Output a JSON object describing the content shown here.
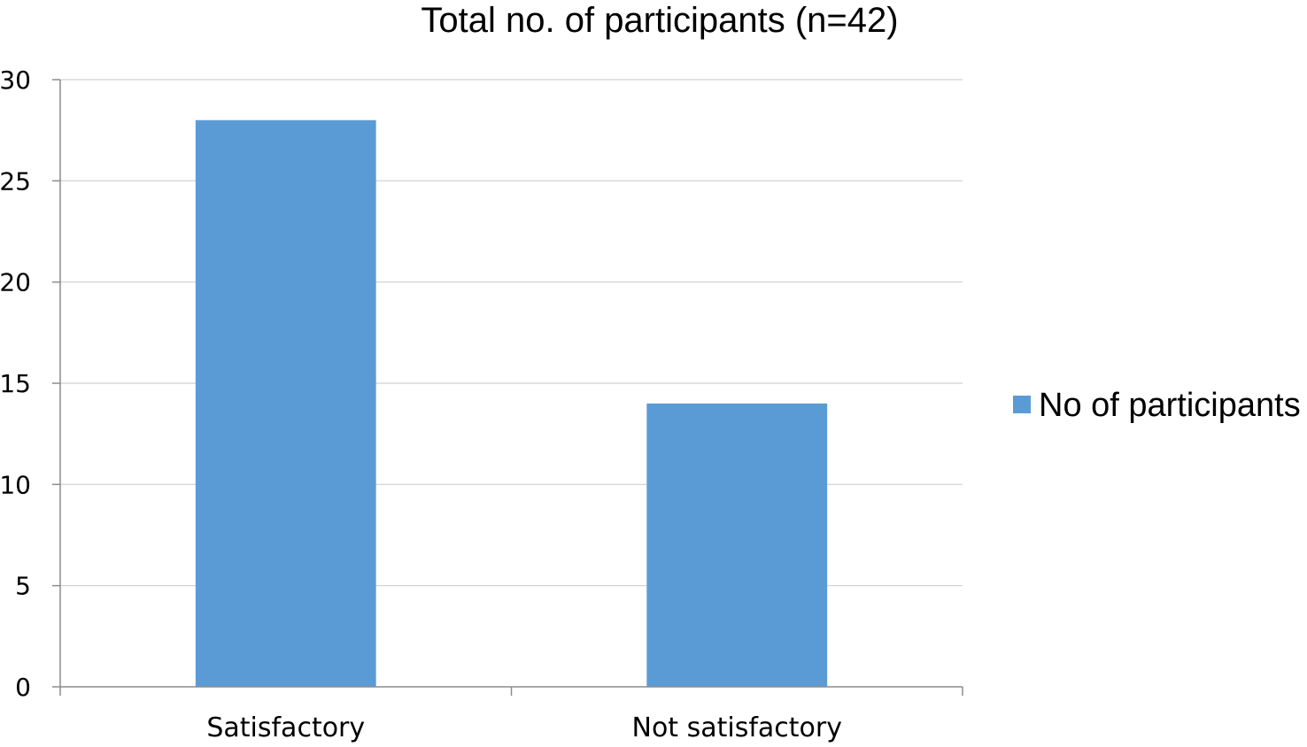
{
  "chart_data": {
    "type": "bar",
    "title": "Total no. of participants (n=42)",
    "categories": [
      "Satisfactory",
      "Not satisfactory"
    ],
    "series": [
      {
        "name": "No of participants",
        "values": [
          28,
          14
        ],
        "color": "#5b9bd5"
      }
    ],
    "ylim": [
      0,
      30
    ],
    "yticks": [
      0,
      5,
      10,
      15,
      20,
      25,
      30
    ],
    "grid": true,
    "legend_position": "right"
  }
}
